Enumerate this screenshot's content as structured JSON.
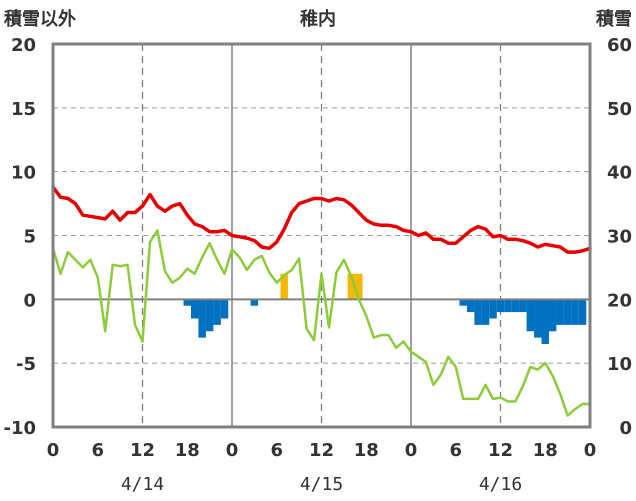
{
  "chart_data": {
    "type": "line",
    "title": "稚内",
    "left_axis_label": "積雪以外",
    "right_axis_label": "積雪",
    "ylim_left": [
      -10,
      20
    ],
    "ylim_right": [
      0,
      60
    ],
    "y_ticks_left": [
      "20",
      "15",
      "10",
      "5",
      "0",
      "-5",
      "-10"
    ],
    "y_ticks_right": [
      "60",
      "50",
      "40",
      "30",
      "20",
      "10",
      "0"
    ],
    "x_ticks": [
      "0",
      "6",
      "12",
      "18",
      "0",
      "6",
      "12",
      "18",
      "0",
      "6",
      "12",
      "18",
      "0"
    ],
    "x_dates": [
      "4/14",
      "4/15",
      "4/16"
    ],
    "grid": true,
    "colors": {
      "temperature": "#e60000",
      "dewpoint": "#8ccc3c",
      "snow_increase": "#f5b800",
      "snow_decrease": "#0070c0",
      "snow_depth": "#7030a0",
      "frame": "#808080"
    },
    "series": [
      {
        "key": "temperature",
        "x": [
          0,
          1,
          2,
          3,
          4,
          5,
          6,
          7,
          8,
          9,
          10,
          11,
          12,
          13,
          14,
          15,
          16,
          17,
          18,
          19,
          20,
          21,
          22,
          23,
          24,
          25,
          26,
          27,
          28,
          29,
          30,
          31,
          32,
          33,
          34,
          35,
          36,
          37,
          38,
          39,
          40,
          41,
          42,
          43,
          44,
          45,
          46,
          47,
          48,
          49,
          50,
          51,
          52,
          53,
          54,
          55,
          56,
          57,
          58,
          59,
          60,
          61,
          62,
          63,
          64,
          65,
          66,
          67,
          68,
          69,
          70,
          71,
          72
        ],
        "values": [
          8.8,
          8.0,
          7.9,
          7.5,
          6.6,
          6.5,
          6.4,
          6.3,
          6.9,
          6.2,
          6.8,
          6.8,
          7.3,
          8.2,
          7.3,
          6.9,
          7.3,
          7.5,
          6.6,
          5.9,
          5.7,
          5.3,
          5.3,
          5.4,
          5.0,
          4.9,
          4.8,
          4.6,
          4.1,
          4.0,
          4.5,
          5.5,
          6.8,
          7.5,
          7.7,
          7.9,
          7.9,
          7.7,
          7.9,
          7.8,
          7.4,
          6.8,
          6.2,
          5.9,
          5.8,
          5.8,
          5.7,
          5.4,
          5.3,
          5.0,
          5.2,
          4.7,
          4.7,
          4.4,
          4.4,
          4.9,
          5.4,
          5.7,
          5.5,
          4.9,
          5.0,
          4.7,
          4.7,
          4.6,
          4.4,
          4.1,
          4.3,
          4.2,
          4.1,
          3.7,
          3.7,
          3.8,
          4.0
        ]
      },
      {
        "key": "dewpoint",
        "x": [
          0,
          1,
          2,
          3,
          4,
          5,
          6,
          7,
          8,
          9,
          10,
          11,
          12,
          13,
          14,
          15,
          16,
          17,
          18,
          19,
          20,
          21,
          22,
          23,
          24,
          25,
          26,
          27,
          28,
          29,
          30,
          31,
          32,
          33,
          34,
          35,
          36,
          37,
          38,
          39,
          40,
          41,
          42,
          43,
          44,
          45,
          46,
          47,
          48,
          49,
          50,
          51,
          52,
          53,
          54,
          55,
          56,
          57,
          58,
          59,
          60,
          61,
          62,
          63,
          64,
          65,
          66,
          67,
          68,
          69,
          70,
          71,
          72
        ],
        "values": [
          4.0,
          2.0,
          3.7,
          3.1,
          2.5,
          3.1,
          1.7,
          -2.5,
          2.7,
          2.6,
          2.7,
          -2.0,
          -3.3,
          4.5,
          5.4,
          2.2,
          1.3,
          1.7,
          2.4,
          2.0,
          3.3,
          4.4,
          3.1,
          2.0,
          3.9,
          3.3,
          2.3,
          3.1,
          3.4,
          2.1,
          1.3,
          1.9,
          2.3,
          3.2,
          -2.3,
          -3.2,
          2.0,
          -2.2,
          2.1,
          3.1,
          1.8,
          0.0,
          -1.3,
          -3.0,
          -2.8,
          -2.8,
          -3.8,
          -3.3,
          -4.1,
          -4.5,
          -4.9,
          -6.7,
          -5.9,
          -4.5,
          -5.3,
          -7.8,
          -7.8,
          -7.8,
          -6.7,
          -7.8,
          -7.7,
          -8.0,
          -8.0,
          -6.8,
          -5.3,
          -5.5,
          -5.0,
          -6.0,
          -7.4,
          -9.1,
          -8.6,
          -8.2,
          -8.2
        ]
      },
      {
        "key": "snow_increase",
        "x": [
          31,
          40,
          41
        ],
        "values": [
          2.0,
          2.0,
          2.0
        ]
      },
      {
        "key": "snow_decrease",
        "x": [
          18,
          19,
          20,
          21,
          22,
          23,
          27,
          55,
          56,
          57,
          58,
          59,
          60,
          61,
          62,
          63,
          64,
          65,
          66,
          67,
          68,
          69,
          70,
          71
        ],
        "values": [
          -0.5,
          -1.5,
          -3.0,
          -2.5,
          -2.0,
          -1.5,
          -0.5,
          -0.5,
          -1.0,
          -2.0,
          -2.0,
          -1.5,
          -1.0,
          -1.0,
          -1.0,
          -1.0,
          -2.5,
          -3.0,
          -3.5,
          -2.5,
          -2.0,
          -2.0,
          -2.0,
          -2.0
        ]
      },
      {
        "key": "snow_depth",
        "x": [
          0,
          72
        ],
        "values": [
          0,
          0
        ]
      }
    ]
  }
}
